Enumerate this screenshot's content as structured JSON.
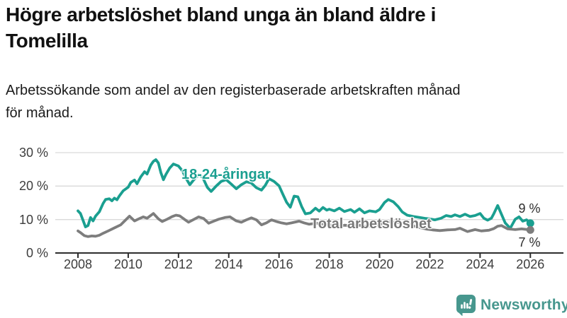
{
  "header": {
    "title_lines": [
      "Högre arbetslöshet bland unga än bland äldre i",
      "Tomelilla"
    ],
    "subtitle_lines": [
      "Arbetssökande som andel av den registerbaserade arbetskraften månad",
      "för månad."
    ]
  },
  "chart_data": {
    "type": "line",
    "title": "Högre arbetslöshet bland unga än bland äldre i Tomelilla",
    "subtitle": "Arbetssökande som andel av den registerbaserade arbetskraften månad för månad.",
    "grid": "horizontal",
    "legend_position": "inline-labels",
    "x_axis": {
      "ticks": [
        2008,
        2010,
        2012,
        2014,
        2016,
        2018,
        2020,
        2022,
        2024,
        2026
      ],
      "tick_labels": [
        "2008",
        "2010",
        "2012",
        "2014",
        "2016",
        "2018",
        "2020",
        "2022",
        "2024",
        "2026"
      ],
      "range": [
        2008,
        2026
      ]
    },
    "y_axis": {
      "ticks": [
        0,
        10,
        20,
        30
      ],
      "tick_labels": [
        "0 %",
        "10 %",
        "20 %",
        "30 %"
      ],
      "range": [
        0,
        30
      ],
      "unit": "%"
    },
    "series": [
      {
        "name": "18-24-åringar",
        "color": "#1a9f90",
        "end_label": "9 %",
        "end_value": 9,
        "points": [
          [
            2008.0,
            12.6
          ],
          [
            2008.1,
            11.8
          ],
          [
            2008.2,
            9.8
          ],
          [
            2008.3,
            7.8
          ],
          [
            2008.4,
            8.2
          ],
          [
            2008.5,
            10.6
          ],
          [
            2008.6,
            9.6
          ],
          [
            2008.7,
            11.0
          ],
          [
            2008.85,
            12.3
          ],
          [
            2009.0,
            14.8
          ],
          [
            2009.1,
            16.0
          ],
          [
            2009.25,
            16.2
          ],
          [
            2009.35,
            15.6
          ],
          [
            2009.45,
            16.4
          ],
          [
            2009.55,
            15.9
          ],
          [
            2009.65,
            17.1
          ],
          [
            2009.8,
            18.6
          ],
          [
            2010.0,
            19.7
          ],
          [
            2010.1,
            21.1
          ],
          [
            2010.25,
            21.8
          ],
          [
            2010.35,
            20.7
          ],
          [
            2010.5,
            22.8
          ],
          [
            2010.65,
            24.3
          ],
          [
            2010.75,
            23.6
          ],
          [
            2010.9,
            26.3
          ],
          [
            2011.0,
            27.4
          ],
          [
            2011.1,
            27.9
          ],
          [
            2011.2,
            26.9
          ],
          [
            2011.3,
            24.0
          ],
          [
            2011.4,
            21.9
          ],
          [
            2011.5,
            23.5
          ],
          [
            2011.65,
            25.4
          ],
          [
            2011.8,
            26.6
          ],
          [
            2012.0,
            26.0
          ],
          [
            2012.15,
            24.6
          ],
          [
            2012.3,
            22.3
          ],
          [
            2012.45,
            20.4
          ],
          [
            2012.6,
            21.8
          ],
          [
            2012.8,
            23.4
          ],
          [
            2012.95,
            22.8
          ],
          [
            2013.15,
            19.6
          ],
          [
            2013.3,
            18.4
          ],
          [
            2013.5,
            20.0
          ],
          [
            2013.7,
            21.4
          ],
          [
            2013.9,
            21.9
          ],
          [
            2014.1,
            20.6
          ],
          [
            2014.3,
            19.2
          ],
          [
            2014.5,
            20.4
          ],
          [
            2014.7,
            21.3
          ],
          [
            2014.9,
            20.9
          ],
          [
            2015.1,
            19.5
          ],
          [
            2015.3,
            18.8
          ],
          [
            2015.45,
            20.2
          ],
          [
            2015.6,
            22.2
          ],
          [
            2015.8,
            21.4
          ],
          [
            2016.0,
            20.1
          ],
          [
            2016.15,
            17.6
          ],
          [
            2016.3,
            15.2
          ],
          [
            2016.45,
            13.7
          ],
          [
            2016.6,
            17.0
          ],
          [
            2016.75,
            16.8
          ],
          [
            2016.9,
            13.9
          ],
          [
            2017.05,
            11.7
          ],
          [
            2017.25,
            12.0
          ],
          [
            2017.45,
            13.4
          ],
          [
            2017.6,
            12.5
          ],
          [
            2017.75,
            13.6
          ],
          [
            2017.9,
            12.8
          ],
          [
            2018.0,
            13.1
          ],
          [
            2018.2,
            12.6
          ],
          [
            2018.4,
            13.4
          ],
          [
            2018.6,
            12.4
          ],
          [
            2018.85,
            13.0
          ],
          [
            2019.0,
            12.2
          ],
          [
            2019.2,
            13.2
          ],
          [
            2019.4,
            12.0
          ],
          [
            2019.6,
            12.6
          ],
          [
            2019.85,
            12.3
          ],
          [
            2020.0,
            13.0
          ],
          [
            2020.2,
            15.1
          ],
          [
            2020.35,
            16.0
          ],
          [
            2020.55,
            15.3
          ],
          [
            2020.75,
            13.8
          ],
          [
            2020.9,
            12.3
          ],
          [
            2021.1,
            11.3
          ],
          [
            2021.35,
            10.9
          ],
          [
            2021.6,
            10.6
          ],
          [
            2021.85,
            10.3
          ],
          [
            2022.0,
            10.2
          ],
          [
            2022.2,
            9.9
          ],
          [
            2022.45,
            10.4
          ],
          [
            2022.65,
            11.2
          ],
          [
            2022.85,
            10.9
          ],
          [
            2023.0,
            11.4
          ],
          [
            2023.2,
            10.9
          ],
          [
            2023.4,
            11.6
          ],
          [
            2023.6,
            10.9
          ],
          [
            2023.8,
            11.2
          ],
          [
            2024.0,
            11.8
          ],
          [
            2024.15,
            10.4
          ],
          [
            2024.3,
            9.8
          ],
          [
            2024.45,
            10.4
          ],
          [
            2024.55,
            11.8
          ],
          [
            2024.7,
            14.2
          ],
          [
            2024.85,
            11.6
          ],
          [
            2025.0,
            9.0
          ],
          [
            2025.2,
            7.4
          ],
          [
            2025.4,
            10.1
          ],
          [
            2025.55,
            10.8
          ],
          [
            2025.7,
            9.5
          ],
          [
            2025.85,
            9.9
          ],
          [
            2026.0,
            8.9
          ]
        ]
      },
      {
        "name": "Total arbetslöshet",
        "color": "#7d7d7d",
        "end_label": "7 %",
        "end_value": 7,
        "points": [
          [
            2008.0,
            6.6
          ],
          [
            2008.1,
            6.1
          ],
          [
            2008.25,
            5.2
          ],
          [
            2008.4,
            4.9
          ],
          [
            2008.55,
            5.1
          ],
          [
            2008.7,
            5.0
          ],
          [
            2008.85,
            5.3
          ],
          [
            2009.0,
            5.9
          ],
          [
            2009.2,
            6.6
          ],
          [
            2009.45,
            7.5
          ],
          [
            2009.7,
            8.4
          ],
          [
            2009.9,
            9.9
          ],
          [
            2010.05,
            11.0
          ],
          [
            2010.25,
            9.6
          ],
          [
            2010.45,
            10.3
          ],
          [
            2010.6,
            10.8
          ],
          [
            2010.75,
            10.4
          ],
          [
            2011.0,
            11.8
          ],
          [
            2011.2,
            10.2
          ],
          [
            2011.35,
            9.4
          ],
          [
            2011.55,
            10.1
          ],
          [
            2011.75,
            10.9
          ],
          [
            2011.9,
            11.3
          ],
          [
            2012.05,
            11.1
          ],
          [
            2012.25,
            10.0
          ],
          [
            2012.4,
            9.2
          ],
          [
            2012.6,
            10.0
          ],
          [
            2012.8,
            10.8
          ],
          [
            2013.0,
            10.3
          ],
          [
            2013.2,
            8.9
          ],
          [
            2013.4,
            9.5
          ],
          [
            2013.6,
            10.1
          ],
          [
            2013.85,
            10.6
          ],
          [
            2014.05,
            10.8
          ],
          [
            2014.3,
            9.6
          ],
          [
            2014.5,
            9.2
          ],
          [
            2014.7,
            9.9
          ],
          [
            2014.9,
            10.5
          ],
          [
            2015.1,
            9.9
          ],
          [
            2015.3,
            8.4
          ],
          [
            2015.5,
            9.0
          ],
          [
            2015.7,
            9.9
          ],
          [
            2015.9,
            9.4
          ],
          [
            2016.1,
            9.0
          ],
          [
            2016.3,
            8.7
          ],
          [
            2016.5,
            9.0
          ],
          [
            2016.8,
            9.5
          ],
          [
            2017.0,
            9.0
          ],
          [
            2017.2,
            8.6
          ],
          [
            2017.5,
            8.9
          ],
          [
            2017.8,
            8.6
          ],
          [
            2018.0,
            8.4
          ],
          [
            2018.3,
            8.0
          ],
          [
            2018.6,
            8.3
          ],
          [
            2018.9,
            8.1
          ],
          [
            2019.2,
            8.3
          ],
          [
            2019.5,
            7.9
          ],
          [
            2019.8,
            8.2
          ],
          [
            2020.1,
            8.7
          ],
          [
            2020.4,
            9.3
          ],
          [
            2020.7,
            9.1
          ],
          [
            2021.0,
            8.8
          ],
          [
            2021.3,
            8.2
          ],
          [
            2021.6,
            7.6
          ],
          [
            2021.9,
            7.1
          ],
          [
            2022.1,
            6.9
          ],
          [
            2022.4,
            6.7
          ],
          [
            2022.7,
            6.9
          ],
          [
            2023.0,
            7.0
          ],
          [
            2023.2,
            7.4
          ],
          [
            2023.5,
            6.4
          ],
          [
            2023.8,
            7.0
          ],
          [
            2024.05,
            6.6
          ],
          [
            2024.35,
            6.8
          ],
          [
            2024.55,
            7.3
          ],
          [
            2024.7,
            8.0
          ],
          [
            2024.85,
            8.2
          ],
          [
            2025.1,
            7.2
          ],
          [
            2025.4,
            7.0
          ],
          [
            2025.65,
            7.2
          ],
          [
            2026.0,
            6.9
          ]
        ]
      }
    ]
  },
  "branding": {
    "name": "Newsworthy",
    "color": "#47978e",
    "icon": "chart-speech-bubble"
  }
}
